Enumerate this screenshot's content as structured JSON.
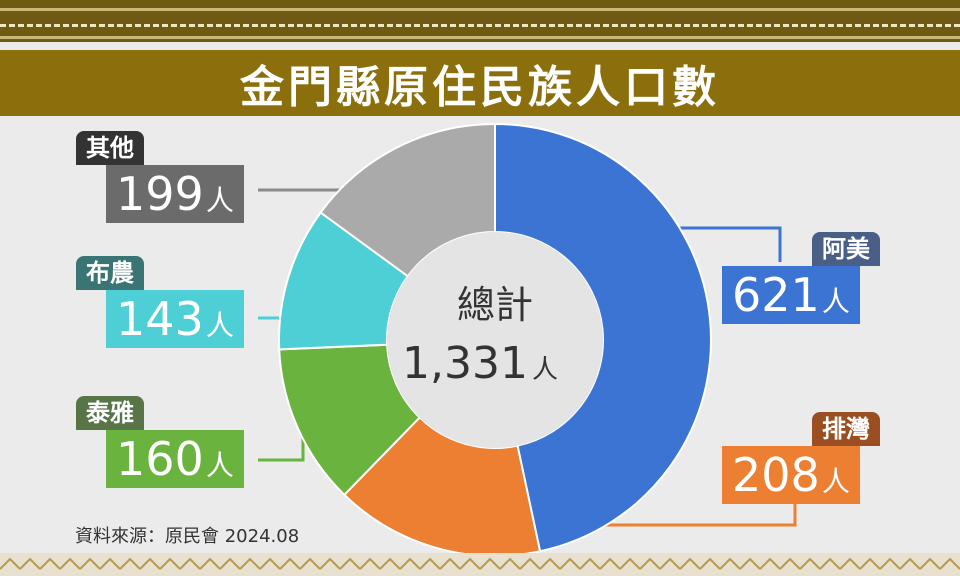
{
  "title": "金門縣原住民族人口數",
  "source": "資料來源：原民會 2024.08",
  "unit": "人",
  "chart_data": {
    "type": "pie",
    "title": "金門縣原住民族人口數",
    "center_label": "總計",
    "total": "1,331",
    "slices": [
      {
        "name": "阿美",
        "value": 621,
        "color": "#3b74d2",
        "tag_color": "#4a5f86"
      },
      {
        "name": "排灣",
        "value": 208,
        "color": "#ec7f32",
        "tag_color": "#9a4e22"
      },
      {
        "name": "泰雅",
        "value": 160,
        "color": "#69b33e",
        "tag_color": "#587548"
      },
      {
        "name": "布農",
        "value": 143,
        "color": "#4ecfd5",
        "tag_color": "#3a7474"
      },
      {
        "name": "其他",
        "value": 199,
        "color": "#aaaaaa",
        "tag_color": "#333333"
      }
    ]
  }
}
